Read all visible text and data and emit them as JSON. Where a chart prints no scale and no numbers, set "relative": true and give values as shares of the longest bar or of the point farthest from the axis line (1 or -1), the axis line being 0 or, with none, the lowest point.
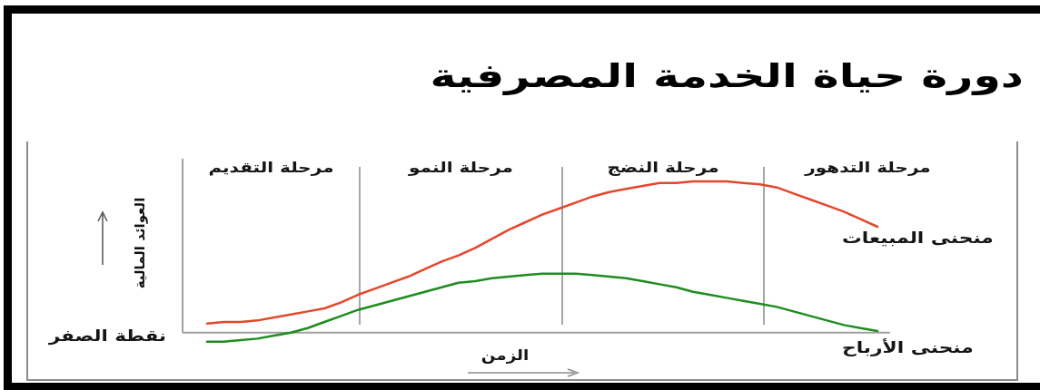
{
  "chart_data": {
    "type": "line",
    "title": "دورة حياة الخدمة المصرفية",
    "xlabel": "الزمن",
    "ylabel": "العوائد المالية",
    "relative": true,
    "line_style": "solid",
    "categories": [
      null,
      null,
      null,
      null,
      null,
      null,
      null,
      null,
      null,
      null,
      null,
      null,
      null,
      null,
      null,
      null,
      null,
      null,
      null,
      null,
      null,
      null,
      null,
      null,
      null,
      null,
      null,
      null,
      null,
      null,
      null,
      null,
      null,
      null,
      null,
      null,
      null,
      null,
      null,
      null,
      null
    ],
    "series": [
      {
        "name": "منحنى المبيعات",
        "color": "#e4472b",
        "values": [
          0.06,
          0.07,
          0.07,
          0.08,
          0.1,
          0.12,
          0.14,
          0.16,
          0.2,
          0.25,
          0.29,
          0.33,
          0.37,
          0.42,
          0.47,
          0.51,
          0.56,
          0.62,
          0.68,
          0.73,
          0.78,
          0.82,
          0.86,
          0.9,
          0.93,
          0.95,
          0.97,
          0.99,
          0.99,
          1.0,
          1.0,
          1.0,
          0.99,
          0.98,
          0.96,
          0.92,
          0.88,
          0.84,
          0.8,
          0.75,
          0.7
        ]
      },
      {
        "name": "منحنى الأرباح",
        "color": "#1f8c1f",
        "values": [
          -0.06,
          -0.06,
          -0.05,
          -0.04,
          -0.02,
          0.0,
          0.03,
          0.07,
          0.11,
          0.15,
          0.18,
          0.21,
          0.24,
          0.27,
          0.3,
          0.33,
          0.34,
          0.36,
          0.37,
          0.38,
          0.39,
          0.39,
          0.39,
          0.38,
          0.37,
          0.36,
          0.34,
          0.32,
          0.3,
          0.27,
          0.25,
          0.23,
          0.21,
          0.19,
          0.17,
          0.14,
          0.11,
          0.08,
          0.05,
          0.03,
          0.01
        ]
      }
    ],
    "annotations": [
      "مرحلة التقديم",
      "مرحلة النمو",
      "مرحلة النضج",
      "مرحلة التدهور",
      "نقطة الصفر"
    ]
  }
}
